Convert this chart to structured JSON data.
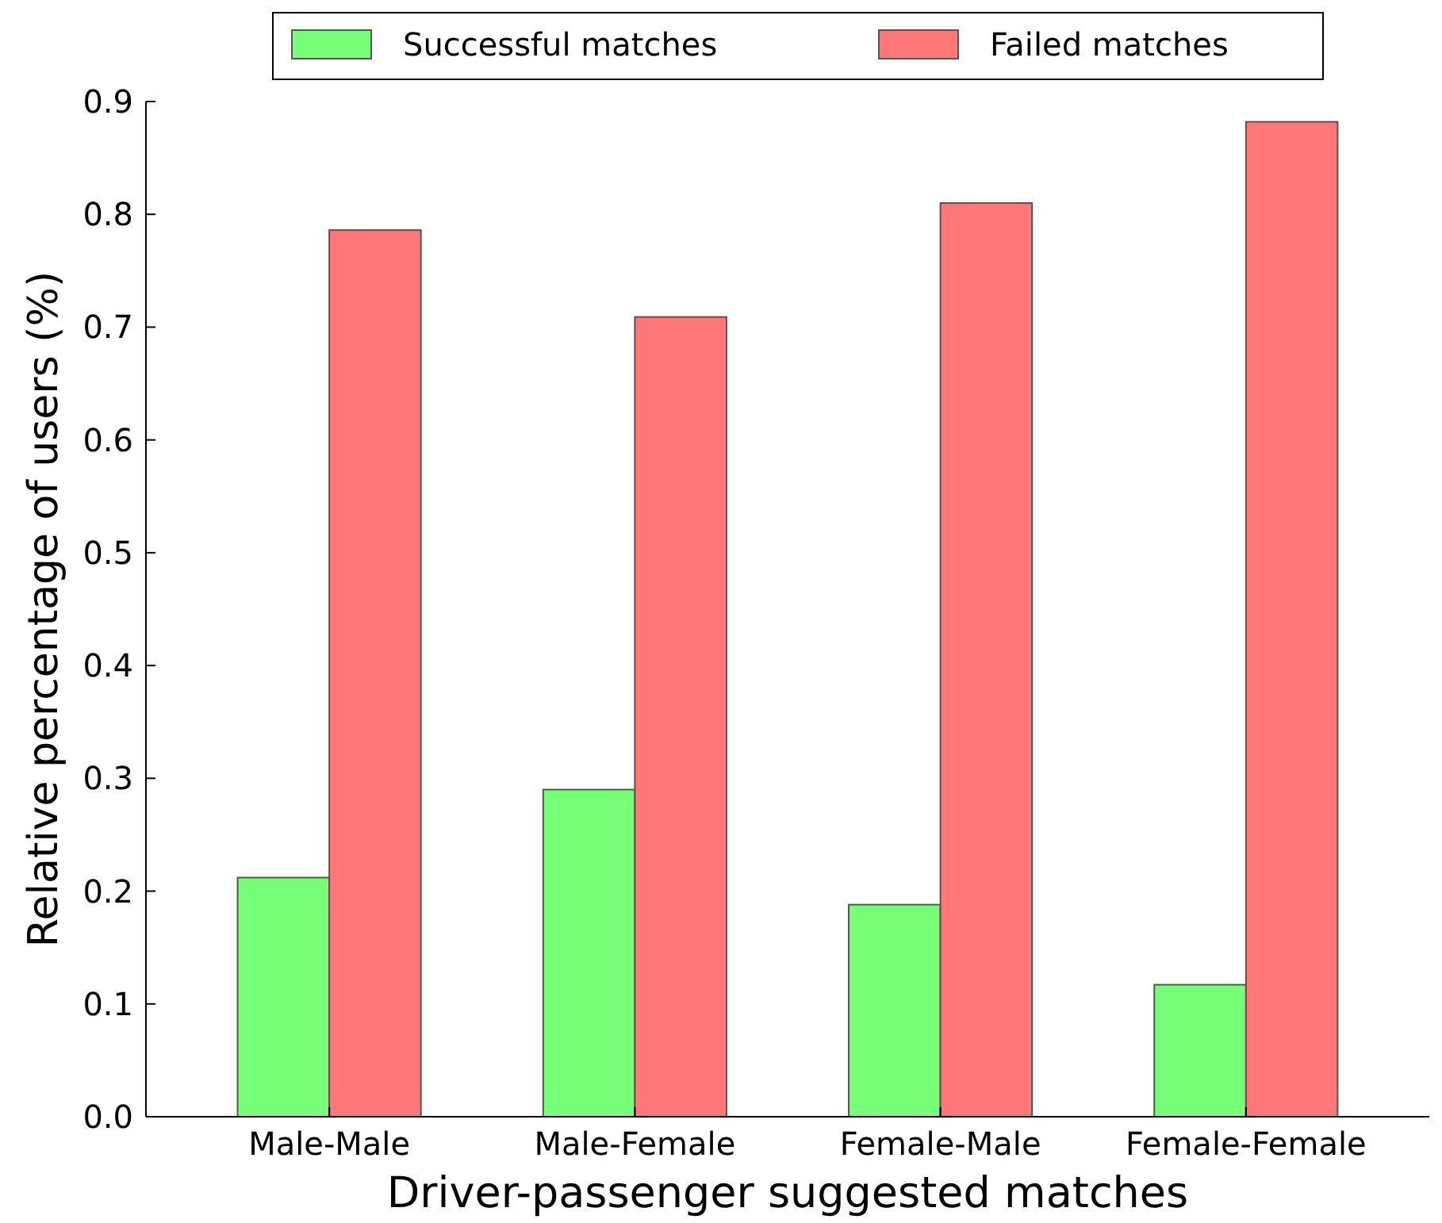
{
  "chart_data": {
    "type": "bar",
    "xlabel": "Driver-passenger suggested matches",
    "ylabel": "Relative percentage of users (%)",
    "categories": [
      "Male-Male",
      "Male-Female",
      "Female-Male",
      "Female-Female"
    ],
    "series": [
      {
        "name": "Successful matches",
        "color": "#77ff77",
        "values": [
          0.212,
          0.29,
          0.188,
          0.117
        ]
      },
      {
        "name": "Failed matches",
        "color": "#ff7777",
        "values": [
          0.786,
          0.709,
          0.81,
          0.882
        ]
      }
    ],
    "ylim": [
      0,
      0.9
    ],
    "yticks": [
      "0.0",
      0.1,
      0.2,
      0.3,
      0.4,
      0.5,
      0.6,
      0.7,
      0.8,
      0.9
    ],
    "grid": false,
    "legend": "top"
  }
}
